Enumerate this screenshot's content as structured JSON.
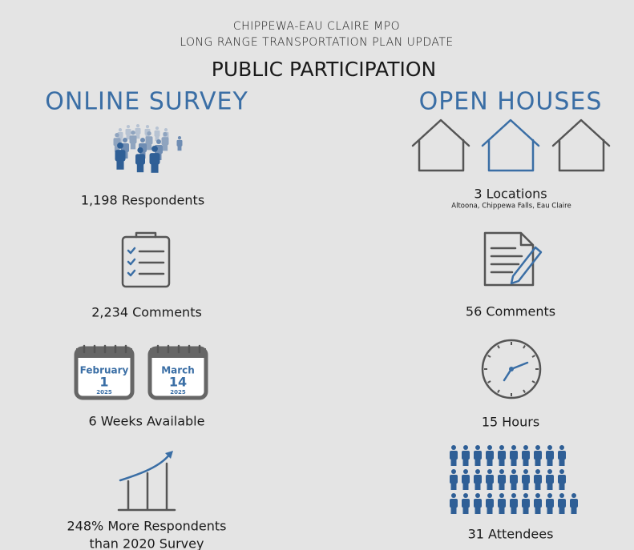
{
  "header": {
    "org": "CHIPPEWA-EAU CLAIRE MPO",
    "plan": "LONG RANGE TRANSPORTATION PLAN UPDATE",
    "title": "PUBLIC PARTICIPATION"
  },
  "online_survey": {
    "heading": "ONLINE SURVEY",
    "respondents": "1,198 Respondents",
    "comments": "2,234 Comments",
    "calendars": [
      {
        "month": "February",
        "day": "1",
        "year": "2025"
      },
      {
        "month": "March",
        "day": "14",
        "year": "2025"
      }
    ],
    "availability": "6 Weeks Available",
    "growth": [
      "248% More Respondents",
      "than 2020 Survey"
    ]
  },
  "open_houses": {
    "heading": "OPEN HOUSES",
    "locations": "3 Locations",
    "location_names": "Altoona, Chippewa Falls, Eau Claire",
    "comments": "56 Comments",
    "hours": "15 Hours",
    "attendees": "31 Attendees"
  }
}
